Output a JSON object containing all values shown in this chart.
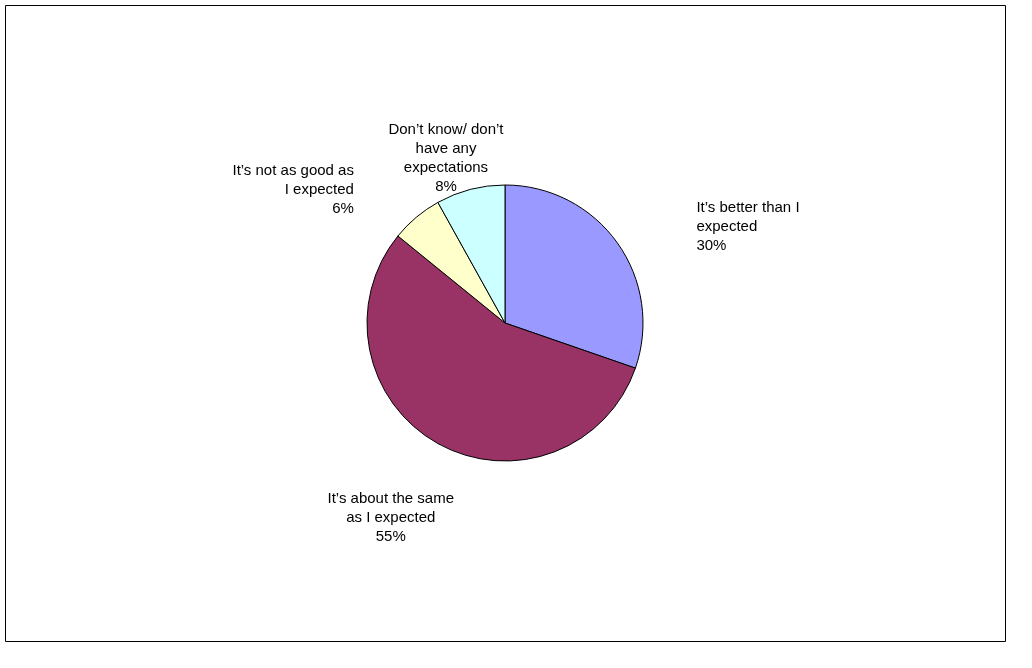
{
  "chart_data": {
    "type": "pie",
    "categories": [
      "It’s better than I expected",
      "It’s about the same as I expected",
      "It’s not as good as I expected",
      "Don’t know/ don’t have any expectations"
    ],
    "values": [
      30,
      55,
      6,
      8
    ],
    "colors": [
      "#9999ff",
      "#993366",
      "#ffffcc",
      "#ccffff"
    ],
    "value_labels": [
      "30%",
      "55%",
      "6%",
      "8%"
    ],
    "legend": false
  }
}
